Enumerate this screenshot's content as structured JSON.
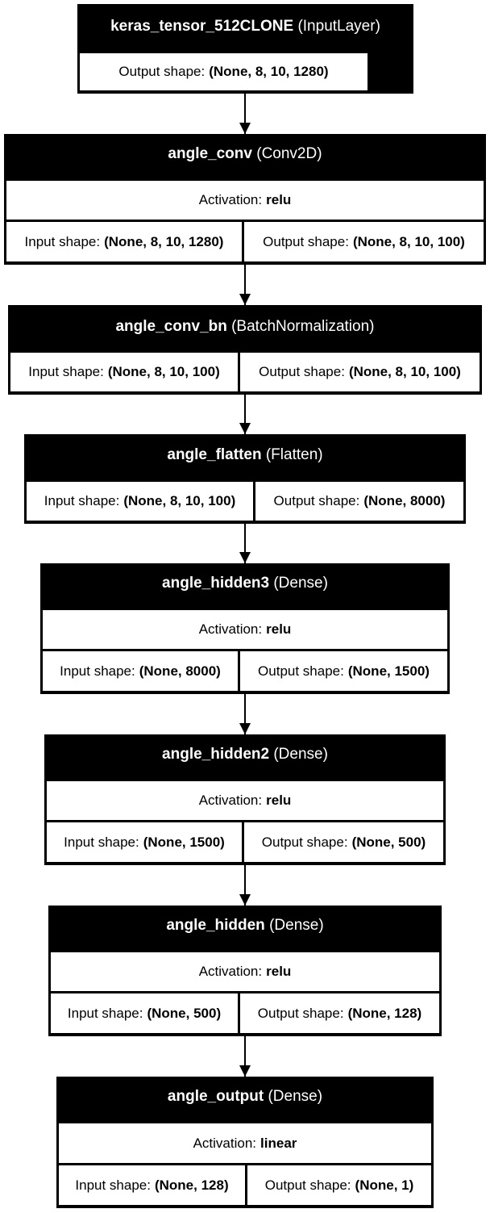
{
  "layers": [
    {
      "name": "keras_tensor_512CLONE",
      "type": "(InputLayer)",
      "output_label": "Output shape:",
      "output_shape": "(None, 8, 10, 1280)"
    },
    {
      "name": "angle_conv",
      "type": "(Conv2D)",
      "activation_label": "Activation:",
      "activation": "relu",
      "input_label": "Input shape:",
      "input_shape": "(None, 8, 10, 1280)",
      "output_label": "Output shape:",
      "output_shape": "(None, 8, 10, 100)"
    },
    {
      "name": "angle_conv_bn",
      "type": "(BatchNormalization)",
      "input_label": "Input shape:",
      "input_shape": "(None, 8, 10, 100)",
      "output_label": "Output shape:",
      "output_shape": "(None, 8, 10, 100)"
    },
    {
      "name": "angle_flatten",
      "type": "(Flatten)",
      "input_label": "Input shape:",
      "input_shape": "(None, 8, 10, 100)",
      "output_label": "Output shape:",
      "output_shape": "(None, 8000)"
    },
    {
      "name": "angle_hidden3",
      "type": "(Dense)",
      "activation_label": "Activation:",
      "activation": "relu",
      "input_label": "Input shape:",
      "input_shape": "(None, 8000)",
      "output_label": "Output shape:",
      "output_shape": "(None, 1500)"
    },
    {
      "name": "angle_hidden2",
      "type": "(Dense)",
      "activation_label": "Activation:",
      "activation": "relu",
      "input_label": "Input shape:",
      "input_shape": "(None, 1500)",
      "output_label": "Output shape:",
      "output_shape": "(None, 500)"
    },
    {
      "name": "angle_hidden",
      "type": "(Dense)",
      "activation_label": "Activation:",
      "activation": "relu",
      "input_label": "Input shape:",
      "input_shape": "(None, 500)",
      "output_label": "Output shape:",
      "output_shape": "(None, 128)"
    },
    {
      "name": "angle_output",
      "type": "(Dense)",
      "activation_label": "Activation:",
      "activation": "linear",
      "input_label": "Input shape:",
      "input_shape": "(None, 128)",
      "output_label": "Output shape:",
      "output_shape": "(None, 1)"
    }
  ]
}
